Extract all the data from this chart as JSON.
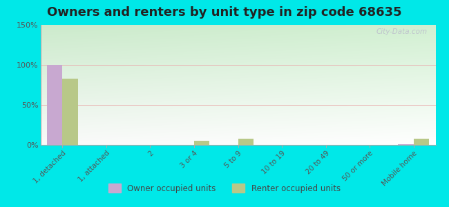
{
  "title": "Owners and renters by unit type in zip code 68635",
  "categories": [
    "1, detached",
    "1, attached",
    "2",
    "3 or 4",
    "5 to 9",
    "10 to 19",
    "20 to 49",
    "50 or more",
    "Mobile home"
  ],
  "owner_values": [
    100,
    0,
    0,
    0,
    0,
    0,
    0,
    0,
    1
  ],
  "renter_values": [
    83,
    0,
    0,
    5,
    8,
    0,
    0,
    0,
    8
  ],
  "owner_color": "#c8a8d0",
  "renter_color": "#b8c888",
  "background_color": "#00e8e8",
  "yticks": [
    0,
    50,
    100,
    150
  ],
  "ylim": [
    0,
    150
  ],
  "bar_width": 0.35,
  "title_fontsize": 13,
  "legend_labels": [
    "Owner occupied units",
    "Renter occupied units"
  ],
  "watermark": "City-Data.com",
  "grad_top_left": "#cce8cc",
  "grad_bottom_right": "#f8fff0"
}
